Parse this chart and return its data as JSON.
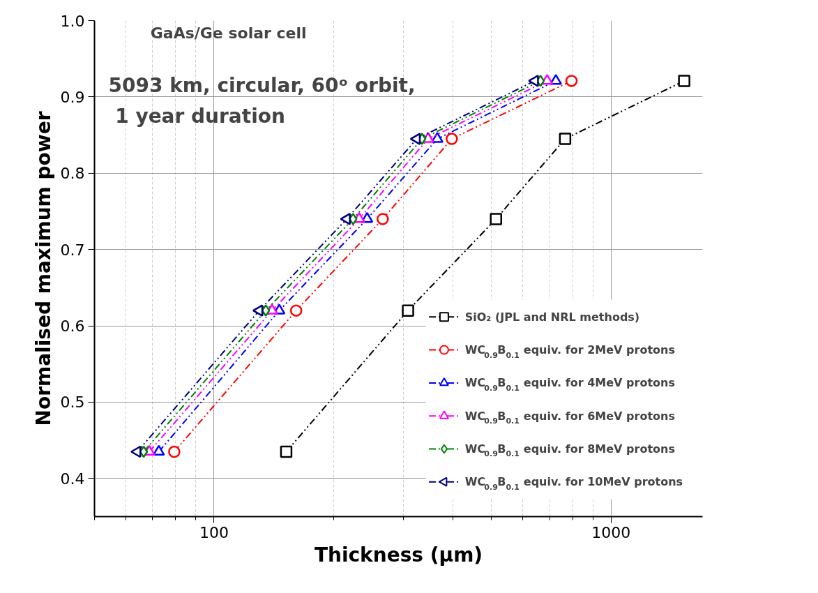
{
  "chart_data": {
    "type": "line",
    "xlabel": "Thickness (μm)",
    "ylabel": "Normalised maximum power",
    "annotations": [
      "GaAs/Ge solar cell",
      "5093 km, circular, 60ᵒ orbit,",
      "1 year duration"
    ],
    "log": "x",
    "xlim": [
      50,
      1700
    ],
    "ylim": [
      0.35,
      1.0
    ],
    "xticks": [
      {
        "value": 50,
        "label": null
      },
      {
        "value": 60,
        "label": null
      },
      {
        "value": 70,
        "label": null
      },
      {
        "value": 80,
        "label": null
      },
      {
        "value": 90,
        "label": null
      },
      100,
      {
        "value": 200,
        "label": null
      },
      {
        "value": 300,
        "label": null
      },
      {
        "value": 400,
        "label": null
      },
      {
        "value": 500,
        "label": null
      },
      {
        "value": 600,
        "label": null
      },
      {
        "value": 700,
        "label": null
      },
      {
        "value": 800,
        "label": null
      },
      {
        "value": 900,
        "label": null
      },
      1000
    ],
    "yticks": [
      0.4,
      0.5,
      0.6,
      0.7,
      0.8,
      0.9,
      {
        "value": 1,
        "label": "1.0"
      }
    ],
    "grid": true,
    "legend": "bottom right",
    "line_style": "dashdot",
    "series": [
      {
        "name": "SiO₂ (JPL and NRL methods)",
        "color": "#000000",
        "marker": "square",
        "x": [
          152,
          308,
          513,
          766,
          1528
        ],
        "values": [
          0.435,
          0.62,
          0.74,
          0.845,
          0.921
        ]
      },
      {
        "name": "WC$_{0.9}$B$_{0.1}$ equiv. for 2MeV protons",
        "color": "#ff0000",
        "marker": "circle",
        "x": [
          79.4,
          161,
          266,
          397,
          795
        ],
        "values": [
          0.435,
          0.62,
          0.74,
          0.845,
          0.921
        ]
      },
      {
        "name": "WC$_{0.9}$B$_{0.1}$ equiv. for 4MeV protons",
        "color": "#0000ff",
        "marker": "triangle",
        "x": [
          72.6,
          146,
          243,
          365,
          726
        ],
        "values": [
          0.435,
          0.62,
          0.74,
          0.845,
          0.921
        ]
      },
      {
        "name": "WC$_{0.9}$B$_{0.1}$ equiv. for 6MeV protons",
        "color": "#ff00ff",
        "marker": "triangle",
        "x": [
          68.7,
          140,
          232,
          346,
          690
        ],
        "values": [
          0.435,
          0.62,
          0.74,
          0.845,
          0.921
        ]
      },
      {
        "name": "WC$_{0.9}$B$_{0.1}$ equiv. for 8MeV protons",
        "color": "#008000",
        "marker": "diamond",
        "x": [
          66.5,
          135,
          224,
          334,
          664
        ],
        "values": [
          0.435,
          0.62,
          0.74,
          0.845,
          0.921
        ]
      },
      {
        "name": "WC$_{0.9}$B$_{0.1}$ equiv. for 10MeV protons",
        "color": "#000080",
        "marker": "triangle_left",
        "x": [
          64.1,
          130,
          216,
          324,
          643
        ],
        "values": [
          0.435,
          0.62,
          0.74,
          0.845,
          0.921
        ]
      }
    ]
  }
}
